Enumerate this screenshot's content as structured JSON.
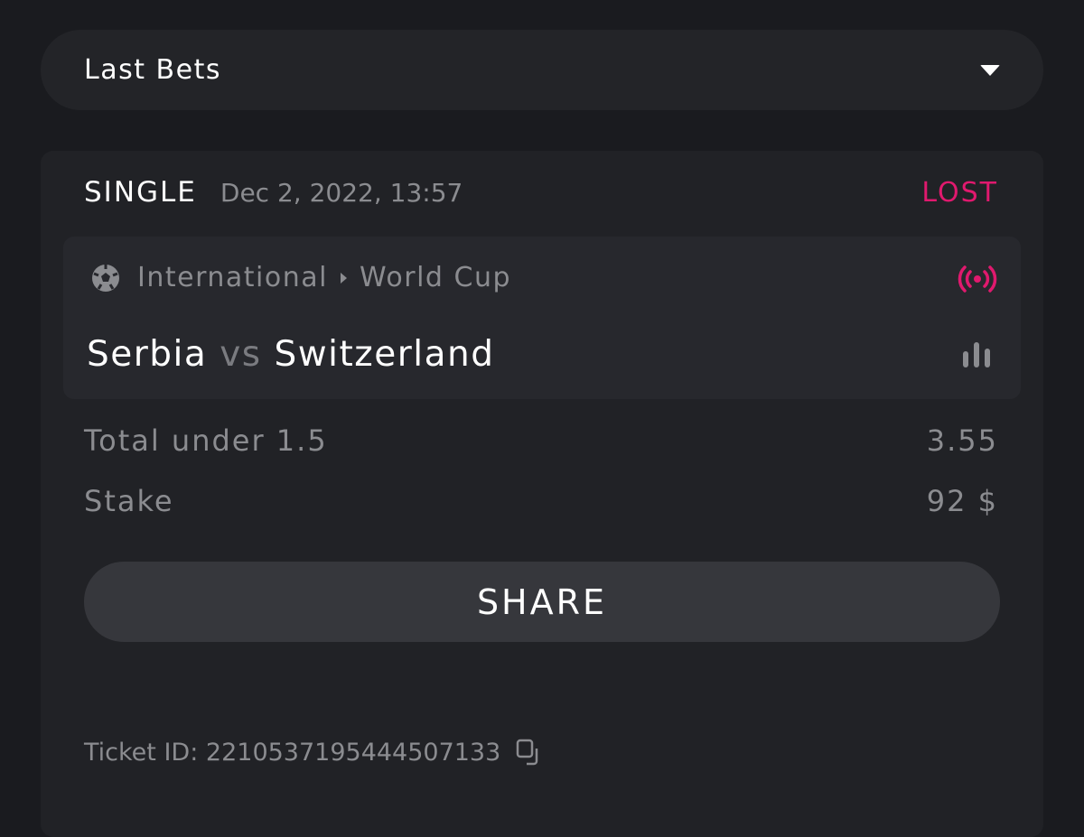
{
  "dropdown": {
    "label": "Last Bets",
    "icon": "caret-down-icon"
  },
  "bet": {
    "type": "SINGLE",
    "date": "Dec 2, 2022, 13:57",
    "status": "LOST",
    "status_color": "#e0196e",
    "category": "International",
    "league": "World Cup",
    "home": "Serbia",
    "vs": "vs",
    "away": "Switzerland",
    "market": "Total under 1.5",
    "odds": "3.55",
    "stake_label": "Stake",
    "stake": "92 $",
    "share_label": "SHARE",
    "ticket_label": "Ticket ID:",
    "ticket_id": "2210537195444507133"
  }
}
